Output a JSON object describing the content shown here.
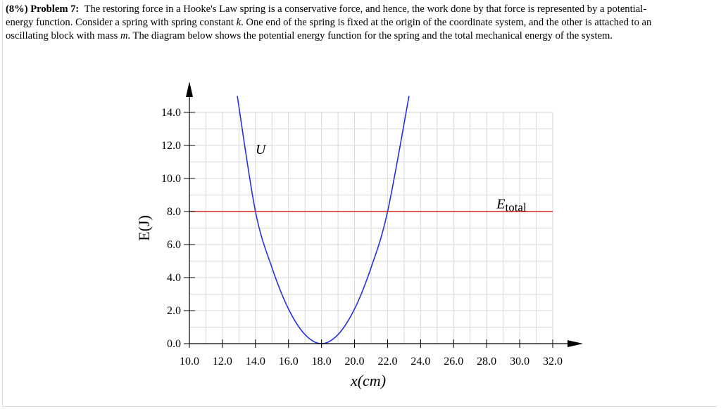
{
  "problem": {
    "label": "(8%) Problem 7:",
    "line1": "The restoring force in a Hooke's Law spring is a conservative force, and hence, the work done by that force is represented by a potential-",
    "line2a": "energy function. Consider a spring with spring constant ",
    "line2var": "k",
    "line2b": ". One end of the spring is fixed at the origin of the coordinate system, and the other is attached to an",
    "line3a": "oscillating block with mass ",
    "line3var": "m",
    "line3b": ". The diagram below shows the potential energy function for the spring and the total mechanical energy of the system."
  },
  "chart_data": {
    "type": "line",
    "xlabel": "x(cm)",
    "ylabel": "E(J)",
    "xlim": [
      10.0,
      32.0
    ],
    "ylim": [
      0.0,
      14.0
    ],
    "grid": true,
    "x_ticks": [
      "10.0",
      "12.0",
      "14.0",
      "16.0",
      "18.0",
      "20.0",
      "22.0",
      "24.0",
      "26.0",
      "28.0",
      "30.0",
      "32.0"
    ],
    "y_ticks": [
      "0.0",
      "2.0",
      "4.0",
      "6.0",
      "8.0",
      "10.0",
      "12.0",
      "14.0"
    ],
    "series": [
      {
        "name": "U",
        "color": "#2233dd",
        "x": [
          12.9,
          14.0,
          15.0,
          16.0,
          17.0,
          18.0,
          19.0,
          20.0,
          21.0,
          22.0,
          23.3
        ],
        "y": [
          15.0,
          8.0,
          4.6,
          2.1,
          0.55,
          0.0,
          0.55,
          2.1,
          4.6,
          8.0,
          15.0
        ]
      },
      {
        "name": "E_total",
        "color": "#dd2222",
        "x": [
          10.0,
          32.0
        ],
        "y": [
          8.0,
          8.0
        ]
      }
    ],
    "annotations": [
      {
        "text": "U",
        "x": 14.0,
        "y": 11.5
      },
      {
        "text": "E",
        "sub": "total",
        "x": 28.6,
        "y": 8.2
      }
    ]
  }
}
